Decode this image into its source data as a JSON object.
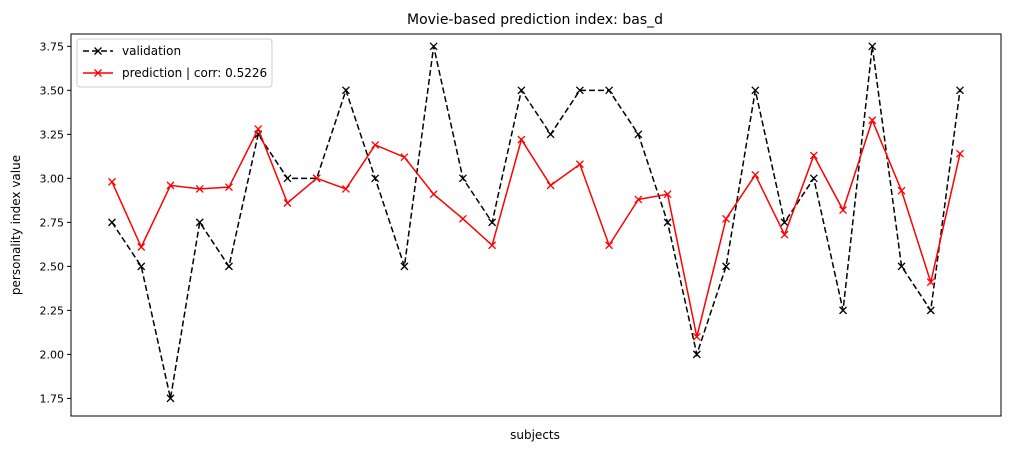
{
  "chart_data": {
    "type": "line",
    "title": "Movie-based prediction index: bas_d",
    "xlabel": "subjects",
    "ylabel": "personality index value",
    "ylim": [
      1.65,
      3.82
    ],
    "yticks": [
      1.75,
      2.0,
      2.25,
      2.5,
      2.75,
      3.0,
      3.25,
      3.5,
      3.75
    ],
    "ytick_labels": [
      "1.75",
      "2.00",
      "2.25",
      "2.50",
      "2.75",
      "3.00",
      "3.25",
      "3.50",
      "3.75"
    ],
    "x": [
      0,
      1,
      2,
      3,
      4,
      5,
      6,
      7,
      8,
      9,
      10,
      11,
      12,
      13,
      14,
      15,
      16,
      17,
      18,
      19,
      20,
      21,
      22,
      23,
      24,
      25,
      26,
      27,
      28,
      29
    ],
    "x_ticks_visible": false,
    "grid": false,
    "legend_position": "top-left",
    "series": [
      {
        "name": "validation",
        "color": "#000000",
        "linestyle": "dashed",
        "marker": "x",
        "values": [
          2.75,
          2.5,
          1.75,
          2.75,
          2.5,
          3.25,
          3.0,
          3.0,
          3.5,
          3.0,
          2.5,
          3.75,
          3.0,
          2.75,
          3.5,
          3.25,
          3.5,
          3.5,
          3.25,
          2.75,
          2.0,
          2.5,
          3.5,
          2.75,
          3.0,
          2.25,
          3.75,
          2.5,
          2.25,
          3.5
        ]
      },
      {
        "name": "prediction | corr: 0.5226",
        "color": "#ff0000",
        "linestyle": "solid",
        "marker": "x",
        "values": [
          2.98,
          2.61,
          2.96,
          2.94,
          2.95,
          3.28,
          2.86,
          3.0,
          2.94,
          3.19,
          3.12,
          2.91,
          2.77,
          2.62,
          3.22,
          2.96,
          3.08,
          2.62,
          2.88,
          2.91,
          2.1,
          2.77,
          3.02,
          2.68,
          3.13,
          2.82,
          3.33,
          2.93,
          2.41,
          3.14
        ]
      }
    ]
  }
}
